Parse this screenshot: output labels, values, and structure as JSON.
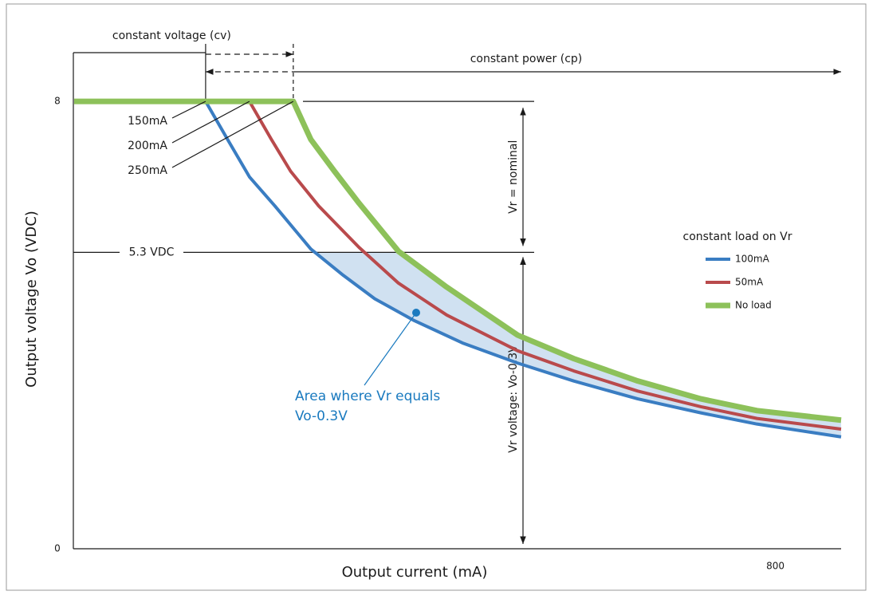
{
  "chart_data": {
    "type": "line",
    "x_label": "Output current (mA)",
    "y_label": "Output voltage Vo (VDC)",
    "xlim": [
      0,
      875
    ],
    "ylim": [
      0,
      9
    ],
    "xticks": [
      800
    ],
    "yticks": [
      0,
      8
    ],
    "legend_title": "constant load on Vr",
    "series": [
      {
        "name": "100mA",
        "color": "#3a7dc2",
        "x": [
          0,
          150,
          175,
          200,
          229,
          270,
          307,
          343,
          388,
          443,
          506,
          570,
          643,
          715,
          779,
          875
        ],
        "values": [
          8,
          8,
          7.32,
          6.65,
          6.13,
          5.36,
          4.89,
          4.47,
          4.08,
          3.68,
          3.32,
          3.0,
          2.68,
          2.43,
          2.23,
          2.0
        ]
      },
      {
        "name": "50mA",
        "color": "#b94a4c",
        "x": [
          0,
          200,
          225,
          247,
          279,
          325,
          370,
          425,
          506,
          570,
          643,
          715,
          779,
          875
        ],
        "values": [
          8,
          8,
          7.32,
          6.75,
          6.13,
          5.39,
          4.75,
          4.18,
          3.54,
          3.18,
          2.82,
          2.54,
          2.33,
          2.14
        ]
      },
      {
        "name": "No load",
        "color": "#8dc15a",
        "x": [
          0,
          250,
          270,
          297,
          325,
          370,
          425,
          506,
          570,
          643,
          715,
          779,
          875
        ],
        "values": [
          8,
          8,
          7.32,
          6.75,
          6.18,
          5.32,
          4.68,
          3.82,
          3.4,
          3.0,
          2.68,
          2.47,
          2.3
        ]
      }
    ],
    "hline": {
      "value": 5.3,
      "label": "5.3 VDC"
    },
    "knees": [
      {
        "value": 150,
        "label": "150mA"
      },
      {
        "value": 200,
        "label": "200mA"
      },
      {
        "value": 250,
        "label": "250mA"
      }
    ],
    "cv_label": "constant voltage (cv)",
    "cp_label": "constant power (cp)",
    "vr_nominal_label": "Vr = nominal",
    "vr_low_label": "Vr voltage: Vo-0.3V",
    "area_label": [
      "Area where Vr equals",
      "Vo-0.3V"
    ]
  }
}
